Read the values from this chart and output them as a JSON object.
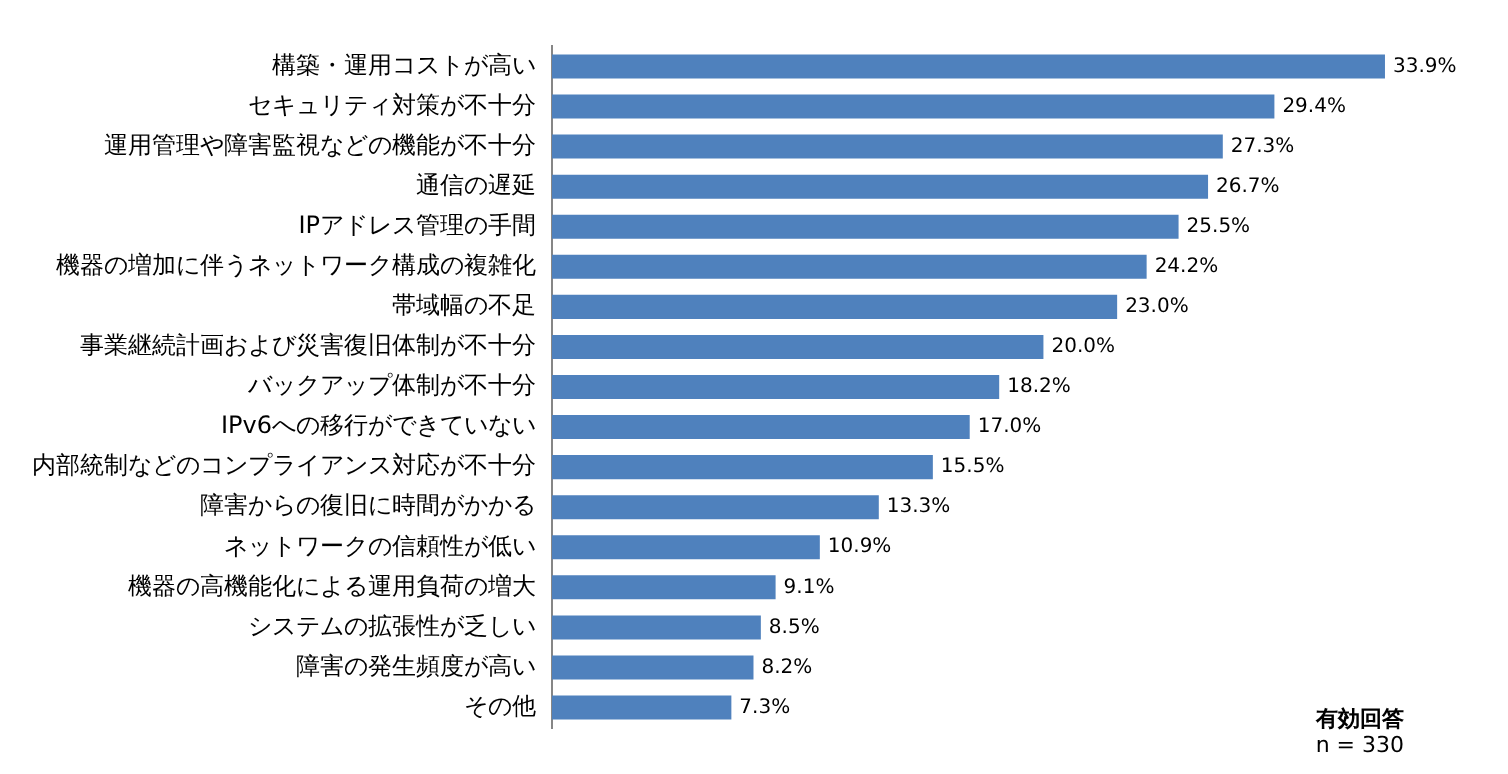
{
  "chart_data": {
    "type": "bar",
    "orientation": "horizontal",
    "categories": [
      "構築・運用コストが高い",
      "セキュリティ対策が不十分",
      "運用管理や障害監視などの機能が不十分",
      "通信の遅延",
      "IPアドレス管理の手間",
      "機器の増加に伴うネットワーク構成の複雑化",
      "帯域幅の不足",
      "事業継続計画および災害復旧体制が不十分",
      "バックアップ体制が不十分",
      "IPv6への移行ができていない",
      "内部統制などのコンプライアンス対応が不十分",
      "障害からの復旧に時間がかかる",
      "ネットワークの信頼性が低い",
      "機器の高機能化による運用負荷の増大",
      "システムの拡張性が乏しい",
      "障害の発生頻度が高い",
      "その他"
    ],
    "values": [
      33.9,
      29.4,
      27.3,
      26.7,
      25.5,
      24.2,
      23.0,
      20.0,
      18.2,
      17.0,
      15.5,
      13.3,
      10.9,
      9.1,
      8.5,
      8.2,
      7.3
    ],
    "value_labels": [
      "33.9%",
      "29.4%",
      "27.3%",
      "26.7%",
      "25.5%",
      "24.2%",
      "23.0%",
      "20.0%",
      "18.2%",
      "17.0%",
      "15.5%",
      "13.3%",
      "10.9%",
      "9.1%",
      "8.5%",
      "8.2%",
      "7.3%"
    ],
    "color": "#4f81bd",
    "tick_labels": "y",
    "legend": false,
    "annotations": [
      "有効回答",
      "n = 330"
    ]
  }
}
